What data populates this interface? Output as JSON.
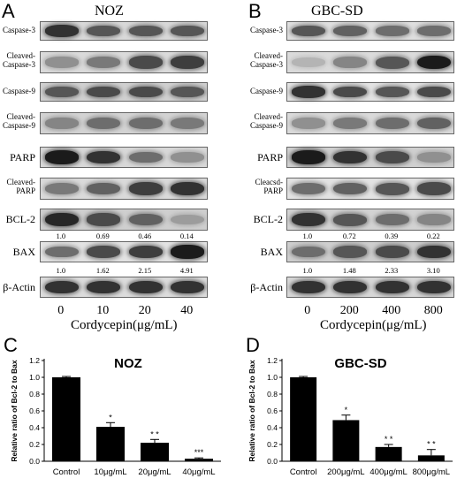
{
  "panels": {
    "A": {
      "letter": "A",
      "title": "NOZ",
      "labels": [
        "Caspase-3",
        "Cleaved-\nCaspase-3",
        "Caspase-9",
        "Cleaved-\nCaspase-9",
        "PARP",
        "Cleaved-\nPARP",
        "BCL-2",
        "BAX",
        "β-Actin"
      ],
      "bcl2_ratios": [
        "1.0",
        "0.69",
        "0.46",
        "0.14"
      ],
      "bax_ratios": [
        "1.0",
        "1.62",
        "2.15",
        "4.91"
      ],
      "concentrations": [
        "0",
        "10",
        "20",
        "40"
      ],
      "xlabel": "Cordycepin(μg/mL)"
    },
    "B": {
      "letter": "B",
      "title": "GBC-SD",
      "labels": [
        "Caspase-3",
        "Cleaved-\nCaspase-3",
        "Caspase-9",
        "Cleaved-\nCaspase-9",
        "PARP",
        "Cleacsd-\nPARP",
        "BCL-2",
        "BAX",
        "β-Actin"
      ],
      "bcl2_ratios": [
        "1.0",
        "0.72",
        "0.39",
        "0.22"
      ],
      "bax_ratios": [
        "1.0",
        "1.48",
        "2.33",
        "3.10"
      ],
      "concentrations": [
        "0",
        "200",
        "400",
        "800"
      ],
      "xlabel": "Cordycepin(μg/mL)"
    },
    "C": {
      "letter": "C"
    },
    "D": {
      "letter": "D"
    }
  },
  "chart_data": [
    {
      "type": "bar",
      "title": "NOZ",
      "ylabel": "Relative ratio of Bcl-2 to Bax",
      "categories": [
        "Control",
        "10μg/mL",
        "20μg/mL",
        "40μg/mL"
      ],
      "values": [
        1.0,
        0.41,
        0.22,
        0.03
      ],
      "errors": [
        0.01,
        0.05,
        0.04,
        0.01
      ],
      "significance": [
        "",
        "*",
        "* *",
        "***"
      ],
      "ylim": [
        0.0,
        1.2
      ],
      "yticks": [
        "0.0",
        "0.2",
        "0.4",
        "0.6",
        "0.8",
        "1.0",
        "1.2"
      ]
    },
    {
      "type": "bar",
      "title": "GBC-SD",
      "ylabel": "Relative ratio of Bcl-2 to Bax",
      "categories": [
        "Control",
        "200μg/mL",
        "400μg/mL",
        "800μg/mL"
      ],
      "values": [
        1.0,
        0.49,
        0.17,
        0.07
      ],
      "errors": [
        0.01,
        0.06,
        0.03,
        0.07
      ],
      "significance": [
        "",
        "*",
        "* *",
        "* *"
      ],
      "ylim": [
        0.0,
        1.2
      ],
      "yticks": [
        "0.0",
        "0.2",
        "0.4",
        "0.6",
        "0.8",
        "1.0",
        "1.2"
      ]
    }
  ]
}
